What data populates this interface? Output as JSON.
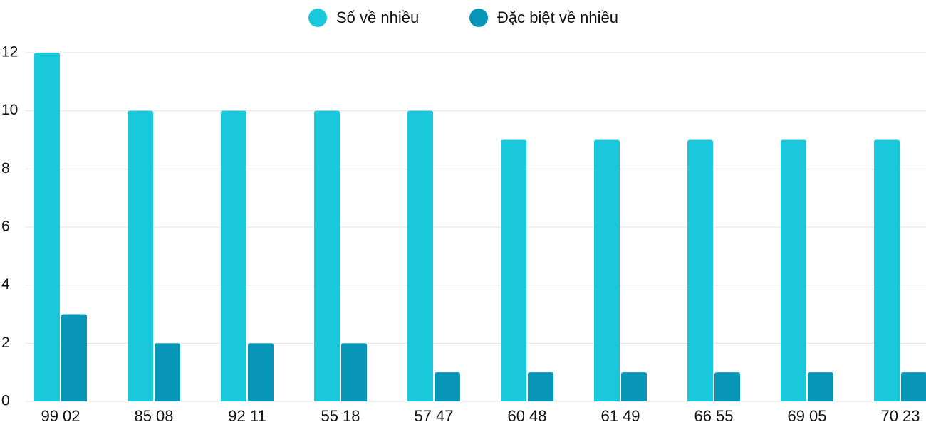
{
  "chart_data": {
    "type": "bar",
    "categories": [
      "99 02",
      "85 08",
      "92 11",
      "55 18",
      "57 47",
      "60 48",
      "61 49",
      "66 55",
      "69 05",
      "70 23"
    ],
    "series": [
      {
        "name": "Số về nhiều",
        "color": "#1ac8db",
        "values": [
          12,
          10,
          10,
          10,
          10,
          9,
          9,
          9,
          9,
          9
        ]
      },
      {
        "name": "Đặc biệt về nhiều",
        "color": "#0795b8",
        "values": [
          3,
          2,
          2,
          2,
          1,
          1,
          1,
          1,
          1,
          1
        ]
      }
    ],
    "ylim": [
      0,
      12
    ],
    "yticks": [
      0,
      2,
      4,
      6,
      8,
      10,
      12
    ],
    "grid": true,
    "legend": "top"
  }
}
